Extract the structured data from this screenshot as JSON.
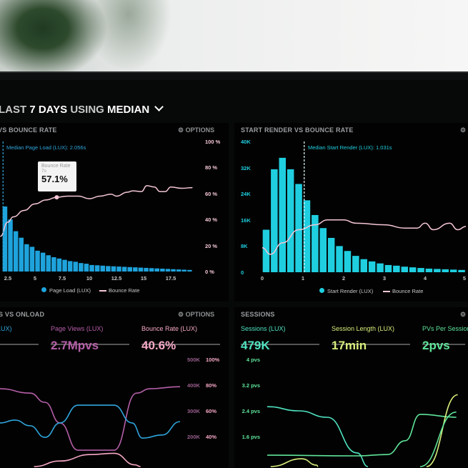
{
  "header": {
    "prefix": "LAST",
    "days": "7 DAYS",
    "using": "USING",
    "method": "MEDIAN",
    "chevron": "chevron-down-icon"
  },
  "panels": {
    "page_load": {
      "title": "VS BOUNCE RATE",
      "options": "OPTIONS",
      "median_label": "Median Page Load (LUX): 2.056s",
      "tooltip": {
        "title": "Bounce Rate",
        "sub": "7s",
        "value": "57.1%"
      },
      "legend": [
        "Page Load (LUX)",
        "Bounce Rate"
      ]
    },
    "start_render": {
      "title": "START RENDER VS BOUNCE RATE",
      "median_label": "Median Start Render (LUX): 1.031s",
      "legend": [
        "Start Render (LUX)",
        "Bounce Rate"
      ]
    },
    "onload": {
      "title": "S VS ONLOAD",
      "options": "OPTIONS",
      "metrics": [
        {
          "label": "LUX)",
          "value": "",
          "color": "#2fa6dc"
        },
        {
          "label": "Page Views (LUX)",
          "value": "2.7Mpvs",
          "color": "#b55fa8"
        },
        {
          "label": "Bounce Rate (LUX)",
          "value": "40.6%",
          "color": "#f6a8c6"
        }
      ]
    },
    "sessions": {
      "title": "SESSIONS",
      "metrics": [
        {
          "label": "Sessions (LUX)",
          "value": "479K",
          "color": "#4fe3c1"
        },
        {
          "label": "Session Length (LUX)",
          "value": "17min",
          "color": "#d7ef7c"
        },
        {
          "label": "PVs Per Session",
          "value": "2pvs",
          "color": "#5fe49a"
        }
      ]
    }
  },
  "colors": {
    "bar_blue": "#1ea3dc",
    "bar_cyan": "#1fcfe0",
    "bounce": "#f4c6d6",
    "bg": "#020202"
  },
  "chart_data": [
    {
      "type": "bar",
      "title": "VS BOUNCE RATE",
      "xlabel": "",
      "ylabel": "",
      "x_ticks": [
        "2.5",
        "5",
        "7.5",
        "10",
        "12.5",
        "15",
        "17.5"
      ],
      "y_right_ticks": [
        "100 %",
        "80 %",
        "60 %",
        "40 %",
        "20 %",
        "0 %"
      ],
      "ylim": [
        0,
        100
      ],
      "series": [
        {
          "name": "Page Load (LUX)",
          "type": "bar",
          "x": [
            2.25,
            2.75,
            3.25,
            3.75,
            4.25,
            4.75,
            5.25,
            5.75,
            6.25,
            6.75,
            7.25,
            7.75,
            8.25,
            8.75,
            9.25,
            9.75,
            10.25,
            10.75,
            11.25,
            11.75,
            12.25,
            12.75,
            13.25,
            13.75,
            14.25,
            14.75,
            15.25,
            15.75,
            16.25,
            16.75,
            17.25,
            17.75,
            18.25,
            18.75,
            19.25
          ],
          "values": [
            50,
            40,
            31,
            26,
            21,
            19,
            16,
            14.5,
            12.5,
            11,
            10,
            9,
            8,
            7.5,
            6.5,
            6,
            5,
            4.8,
            4.5,
            4.2,
            4,
            3.8,
            3.6,
            3.4,
            3.2,
            3,
            2.8,
            2.6,
            2.4,
            2.2,
            2,
            1.8,
            1.6,
            1.4,
            1.2
          ]
        },
        {
          "name": "Bounce Rate",
          "type": "line",
          "x": [
            1.8,
            2.5,
            3,
            4,
            5,
            6,
            7,
            8,
            9,
            10,
            11,
            12,
            12.5,
            13.5,
            14,
            14.8,
            15.3,
            16,
            16.5,
            17,
            17.5,
            18.5,
            19.5
          ],
          "values": [
            27,
            38,
            42,
            47,
            52,
            55,
            57.1,
            58,
            58,
            56,
            58,
            59.5,
            58,
            61,
            62,
            61.5,
            66,
            65,
            61.5,
            61.5,
            65,
            64,
            64.5
          ]
        }
      ],
      "annotations": [
        "Median Page Load (LUX): 2.056s",
        "Bounce Rate 7s 57.1%"
      ],
      "median": 2.056,
      "legend": "bottom"
    },
    {
      "type": "bar",
      "title": "START RENDER VS BOUNCE RATE",
      "x_ticks": [
        "0",
        "1",
        "2",
        "3",
        "4",
        "5"
      ],
      "y_ticks": [
        "40K",
        "32K",
        "24K",
        "16K",
        "8K",
        "0"
      ],
      "ylim": [
        0,
        40
      ],
      "xlim": [
        0,
        5
      ],
      "series": [
        {
          "name": "Start Render (LUX)",
          "type": "bar",
          "x": [
            0.1,
            0.3,
            0.5,
            0.7,
            0.9,
            1.1,
            1.3,
            1.5,
            1.7,
            1.9,
            2.1,
            2.3,
            2.5,
            2.7,
            2.9,
            3.1,
            3.3,
            3.5,
            3.7,
            3.9,
            4.1,
            4.3,
            4.5,
            4.7,
            4.9
          ],
          "values": [
            13,
            31.5,
            35,
            31.5,
            27,
            22,
            17.5,
            13.5,
            10.5,
            8,
            6.5,
            5,
            4,
            3.3,
            2.7,
            2.2,
            2,
            1.7,
            1.5,
            1.3,
            1.1,
            1,
            0.9,
            0.8,
            0.7
          ]
        },
        {
          "name": "Bounce Rate",
          "type": "line",
          "x": [
            0,
            0.2,
            0.5,
            0.9,
            1.3,
            1.6,
            2,
            2.3,
            3,
            3.5,
            3.8,
            4,
            4.2,
            4.6,
            4.8,
            5
          ],
          "values": [
            7.5,
            5.5,
            9,
            13,
            14.5,
            16,
            16,
            15,
            14.5,
            13.5,
            13.5,
            15,
            13,
            15,
            13,
            14
          ]
        }
      ],
      "median": 1.031,
      "legend": "bottom"
    },
    {
      "type": "line",
      "title": "S VS ONLOAD",
      "y_ticks": [
        "500K",
        "400K",
        "300K",
        "200K"
      ],
      "y_right_ticks": [
        "100%",
        "80%",
        "60%",
        "40%"
      ],
      "xlim": [
        0,
        12
      ],
      "series": [
        {
          "axis": "left",
          "color": "#b55fa8",
          "x": [
            0,
            2,
            3,
            4,
            5.2,
            7.6,
            9.1,
            10,
            12
          ],
          "values": [
            386,
            369,
            333,
            253,
            147,
            147,
            369,
            386,
            394
          ]
        },
        {
          "axis": "left",
          "color": "#2fa6dc",
          "x": [
            0,
            1,
            2,
            3,
            4,
            5.2,
            7.6,
            8.8,
            9.5,
            10.8,
            12
          ],
          "values": [
            253,
            264,
            242,
            197,
            253,
            322,
            322,
            253,
            194,
            206,
            258
          ]
        },
        {
          "axis": "right",
          "color": "#f6a8c6",
          "x": [
            0,
            2,
            4,
            6,
            7.6,
            9,
            12
          ],
          "values": [
            16,
            16,
            21,
            26,
            27,
            18,
            7
          ]
        }
      ]
    },
    {
      "type": "line",
      "title": "SESSIONS",
      "y_ticks": [
        "4 pvs",
        "3.2 pvs",
        "2.4 pvs",
        "1.6 pvs"
      ],
      "xlim": [
        0,
        13.5
      ],
      "series": [
        {
          "color": "#4fe3c1",
          "x": [
            0,
            2.1,
            4,
            6,
            8
          ],
          "values": [
            2.53,
            2.4,
            2.2,
            1.09,
            -0.1
          ]
        },
        {
          "color": "#5fe49a",
          "x": [
            0,
            6,
            8,
            9.2,
            10.2,
            12.6
          ],
          "values": [
            1.02,
            1.0,
            1.04,
            1.47,
            2.29,
            2.2
          ]
        },
        {
          "color": "#d7ef7c",
          "x": [
            0,
            2.3,
            3.3,
            4.9
          ],
          "values": [
            0.64,
            0.91,
            0.71,
            -0.07
          ]
        },
        {
          "color": "#d7ef7c",
          "x": [
            9.9,
            12.7
          ],
          "values": [
            -0.1,
            2.9
          ]
        },
        {
          "color": "#5fe49a",
          "x": [
            9.1,
            12.6
          ],
          "values": [
            -0.1,
            2.36
          ]
        }
      ]
    }
  ]
}
